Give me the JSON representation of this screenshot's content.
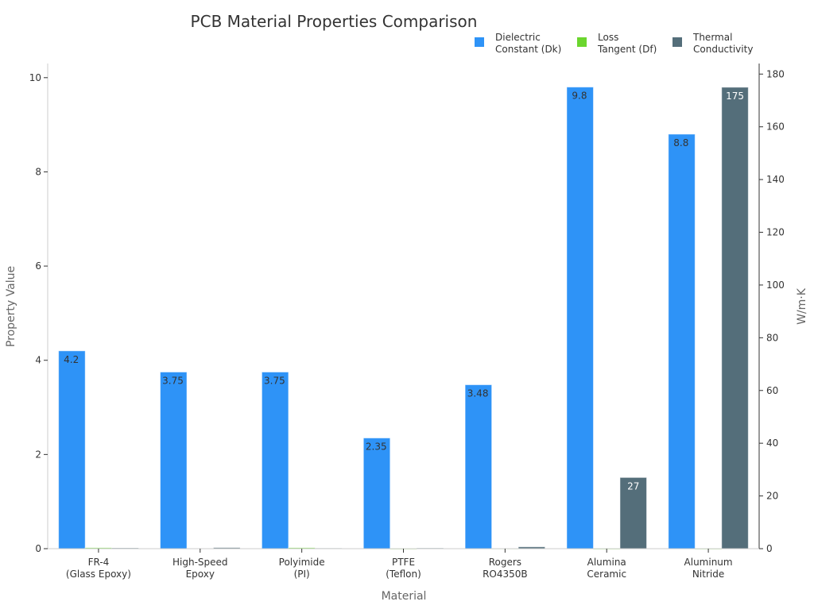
{
  "chart_data": {
    "type": "bar",
    "title": "PCB Material Properties Comparison",
    "xlabel": "Material",
    "ylabel": "Property Value",
    "y2label": "W/m·K",
    "ylim": [
      0,
      10.3
    ],
    "y2lim": [
      0,
      184
    ],
    "yticks": [
      0,
      2,
      4,
      6,
      8,
      10
    ],
    "y2ticks": [
      0,
      20,
      40,
      60,
      80,
      100,
      120,
      140,
      160,
      180
    ],
    "grid": false,
    "legend_position": "top-right",
    "categories": [
      [
        "FR-4",
        "(Glass Epoxy)"
      ],
      [
        "High-Speed",
        "Epoxy"
      ],
      [
        "Polyimide",
        "(PI)"
      ],
      [
        "PTFE",
        "(Teflon)"
      ],
      [
        "Rogers",
        "RO4350B"
      ],
      [
        "Alumina",
        "Ceramic"
      ],
      [
        "Aluminum",
        "Nitride"
      ]
    ],
    "series": [
      {
        "name": [
          "Dielectric",
          "Constant (Dk)"
        ],
        "axis": "left",
        "color": "#2e93f7",
        "values": [
          4.2,
          3.75,
          3.75,
          2.35,
          3.48,
          9.8,
          8.8
        ],
        "labels": [
          "4.2",
          "3.75",
          "3.75",
          "2.35",
          "3.48",
          "9.8",
          "8.8"
        ]
      },
      {
        "name": [
          "Loss",
          "Tangent (Df)"
        ],
        "axis": "left",
        "color": "#6bd62e",
        "values": [
          0.02,
          0.005,
          0.02,
          0.001,
          0.0037,
          0.0001,
          0.0005
        ]
      },
      {
        "name": [
          "Thermal",
          "Conductivity"
        ],
        "axis": "right",
        "color": "#546e7a",
        "values": [
          0.3,
          0.4,
          0.2,
          0.25,
          0.69,
          27,
          175
        ],
        "labels": [
          "",
          "",
          "",
          "",
          "",
          "27",
          "175"
        ]
      }
    ]
  }
}
